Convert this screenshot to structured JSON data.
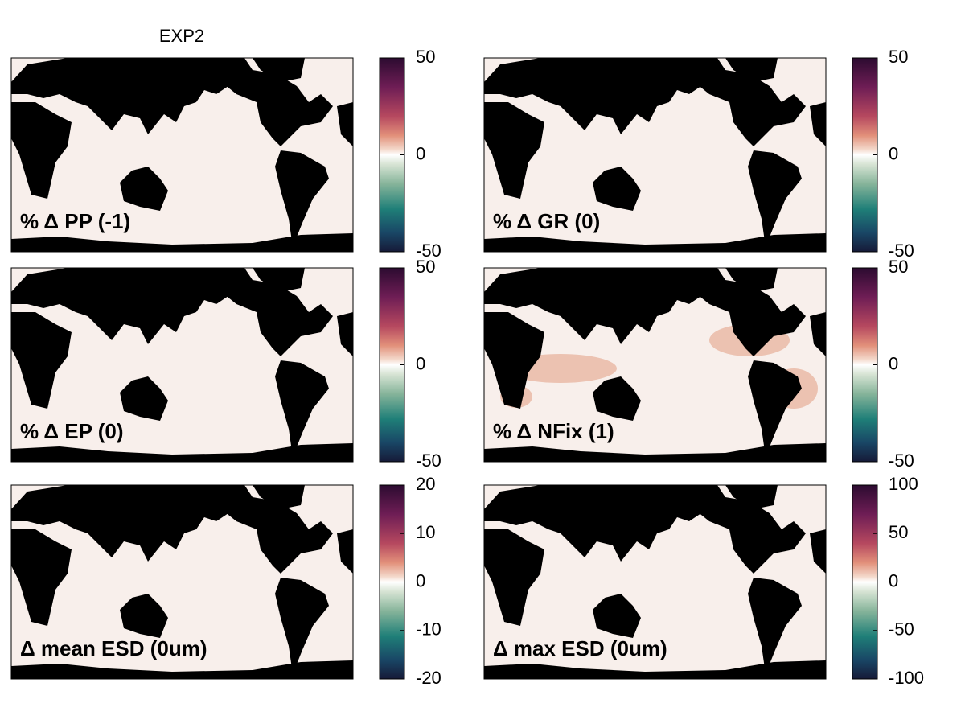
{
  "title": "EXP2",
  "panels": [
    {
      "label": "% Δ PP (-1)",
      "lim": [
        -50,
        50
      ],
      "ticks": [
        -50,
        0,
        50
      ]
    },
    {
      "label": "% Δ GR (0)",
      "lim": [
        -50,
        50
      ],
      "ticks": [
        -50,
        0,
        50
      ]
    },
    {
      "label": "% Δ EP (0)",
      "lim": [
        -50,
        50
      ],
      "ticks": [
        -50,
        0,
        50
      ]
    },
    {
      "label": "% Δ NFix (1)",
      "lim": [
        -50,
        50
      ],
      "ticks": [
        -50,
        0,
        50
      ]
    },
    {
      "label": "Δ mean ESD (0um)",
      "lim": [
        -20,
        20
      ],
      "ticks": [
        -20,
        -10,
        0,
        10,
        20
      ]
    },
    {
      "label": "Δ max ESD (0um)",
      "lim": [
        -100,
        100
      ],
      "ticks": [
        -100,
        -50,
        0,
        50,
        100
      ]
    }
  ]
}
